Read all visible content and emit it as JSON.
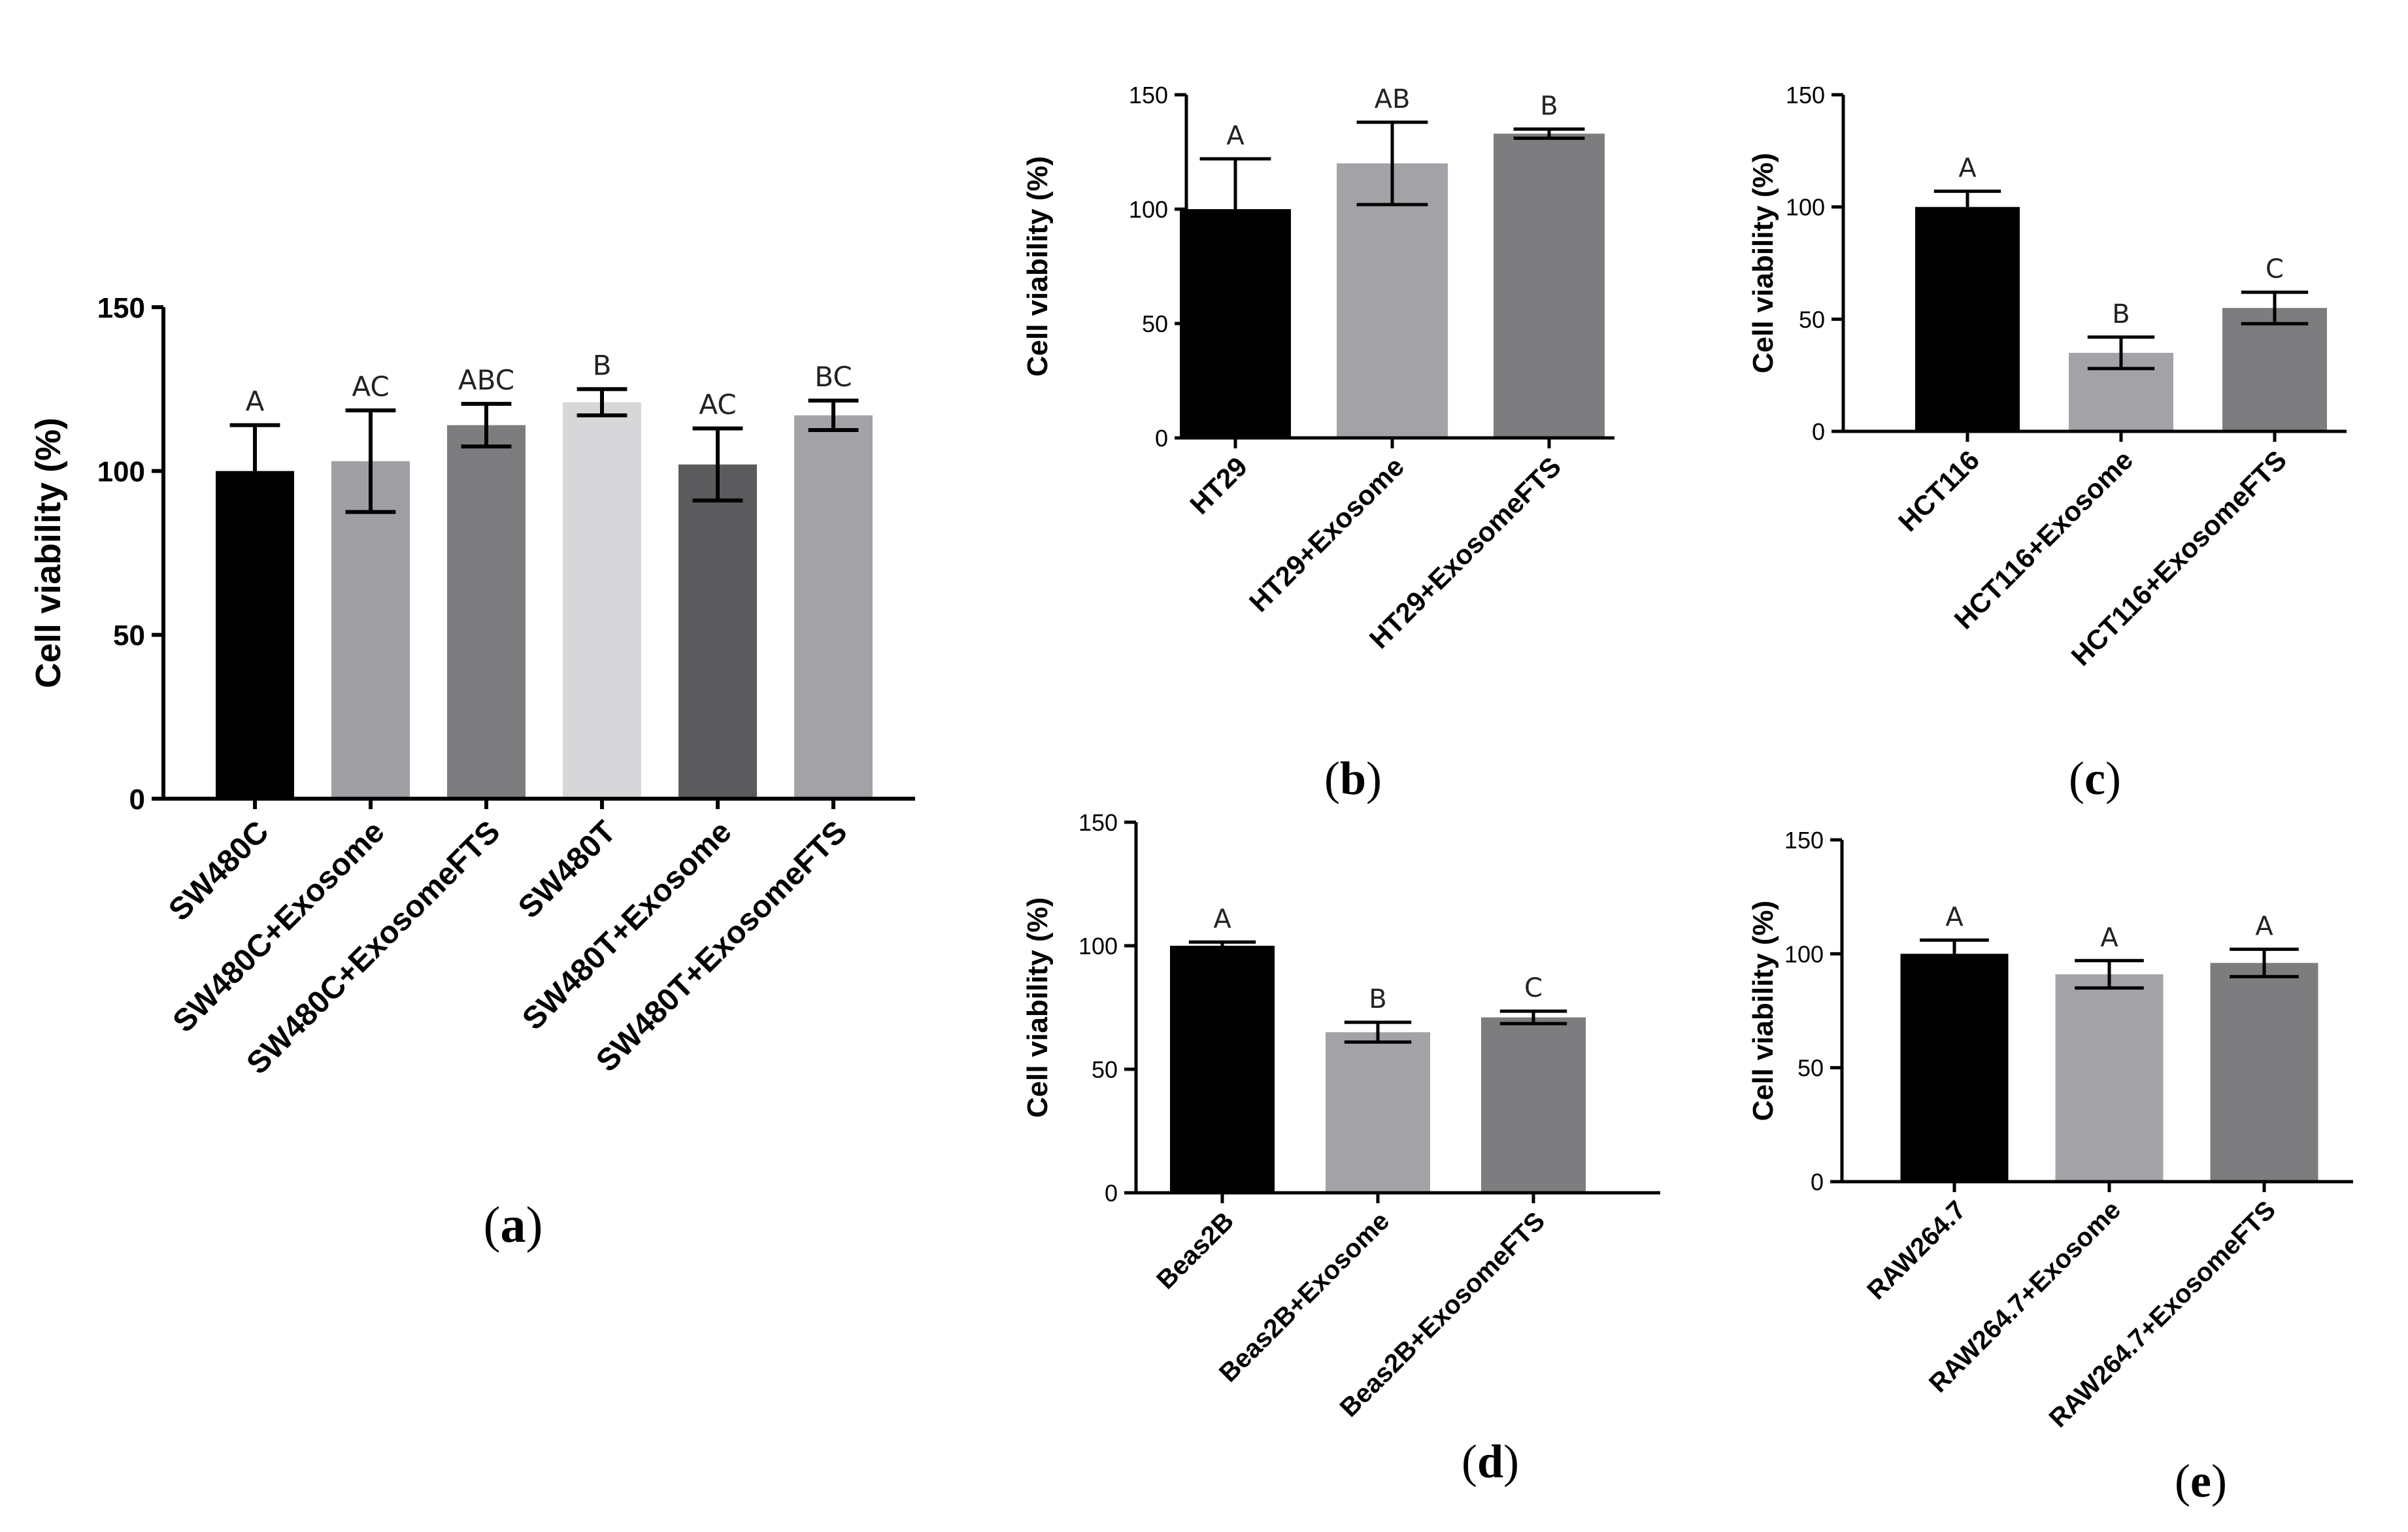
{
  "chart_data": [
    {
      "id": "a",
      "type": "bar",
      "caption_letter": "a",
      "ylabel": "Cell viability (%)",
      "xlabel": "",
      "ylim": [
        0,
        150
      ],
      "yticks": [
        "0",
        "50",
        "100",
        "150"
      ],
      "categories": [
        "SW480C",
        "SW480C+Exosome",
        "SW480C+ExosomeFTS",
        "SW480T",
        "SW480T+Exosome",
        "SW480T+ExosomeFTS"
      ],
      "values": [
        100,
        103,
        114,
        121,
        102,
        117
      ],
      "errors": [
        14,
        15.5,
        6.5,
        4,
        11,
        4.5
      ],
      "significance": [
        "A",
        "AC",
        "ABC",
        "B",
        "AC",
        "BC"
      ],
      "colors": [
        "#000000",
        "#9e9ea3",
        "#7d7d80",
        "#d7d7d9",
        "#5b5b5e",
        "#a3a3a7"
      ]
    },
    {
      "id": "b",
      "type": "bar",
      "caption_letter": "b",
      "ylabel": "Cell viability (%)",
      "xlabel": "",
      "ylim": [
        0,
        150
      ],
      "yticks": [
        "0",
        "50",
        "100",
        "150"
      ],
      "categories": [
        "HT29",
        "HT29+Exosome",
        "HT29+ExosomeFTS"
      ],
      "values": [
        100,
        120,
        133
      ],
      "errors": [
        22,
        18,
        2
      ],
      "significance": [
        "A",
        "AB",
        "B"
      ],
      "colors": [
        "#000000",
        "#a3a3a7",
        "#7d7d80"
      ]
    },
    {
      "id": "c",
      "type": "bar",
      "caption_letter": "c",
      "ylabel": "Cell viability (%)",
      "xlabel": "",
      "ylim": [
        0,
        150
      ],
      "yticks": [
        "0",
        "50",
        "100",
        "150"
      ],
      "categories": [
        "HCT116",
        "HCT116+Exosome",
        "HCT116+ExosomeFTS"
      ],
      "values": [
        100,
        35,
        55
      ],
      "errors": [
        7,
        7,
        7
      ],
      "significance": [
        "A",
        "B",
        "C"
      ],
      "colors": [
        "#000000",
        "#a3a3a7",
        "#7d7d80"
      ]
    },
    {
      "id": "d",
      "type": "bar",
      "caption_letter": "d",
      "ylabel": "Cell viability (%)",
      "xlabel": "",
      "ylim": [
        0,
        150
      ],
      "yticks": [
        "0",
        "50",
        "100",
        "150"
      ],
      "categories": [
        "Beas2B",
        "Beas2B+Exosome",
        "Beas2B+ExosomeFTS"
      ],
      "values": [
        100,
        65,
        71
      ],
      "errors": [
        1.5,
        4,
        2.5
      ],
      "significance": [
        "A",
        "B",
        "C"
      ],
      "colors": [
        "#000000",
        "#a3a3a7",
        "#7d7d80"
      ]
    },
    {
      "id": "e",
      "type": "bar",
      "caption_letter": "e",
      "ylabel": "Cell viability (%)",
      "xlabel": "",
      "ylim": [
        0,
        150
      ],
      "yticks": [
        "0",
        "50",
        "100",
        "150"
      ],
      "categories": [
        "RAW264.7",
        "RAW264.7+Exosome",
        "RAW264.7+ExosomeFTS"
      ],
      "values": [
        100,
        91,
        96
      ],
      "errors": [
        6,
        6,
        6
      ],
      "significance": [
        "A",
        "A",
        "A"
      ],
      "colors": [
        "#000000",
        "#a3a3a7",
        "#7d7d80"
      ]
    }
  ]
}
